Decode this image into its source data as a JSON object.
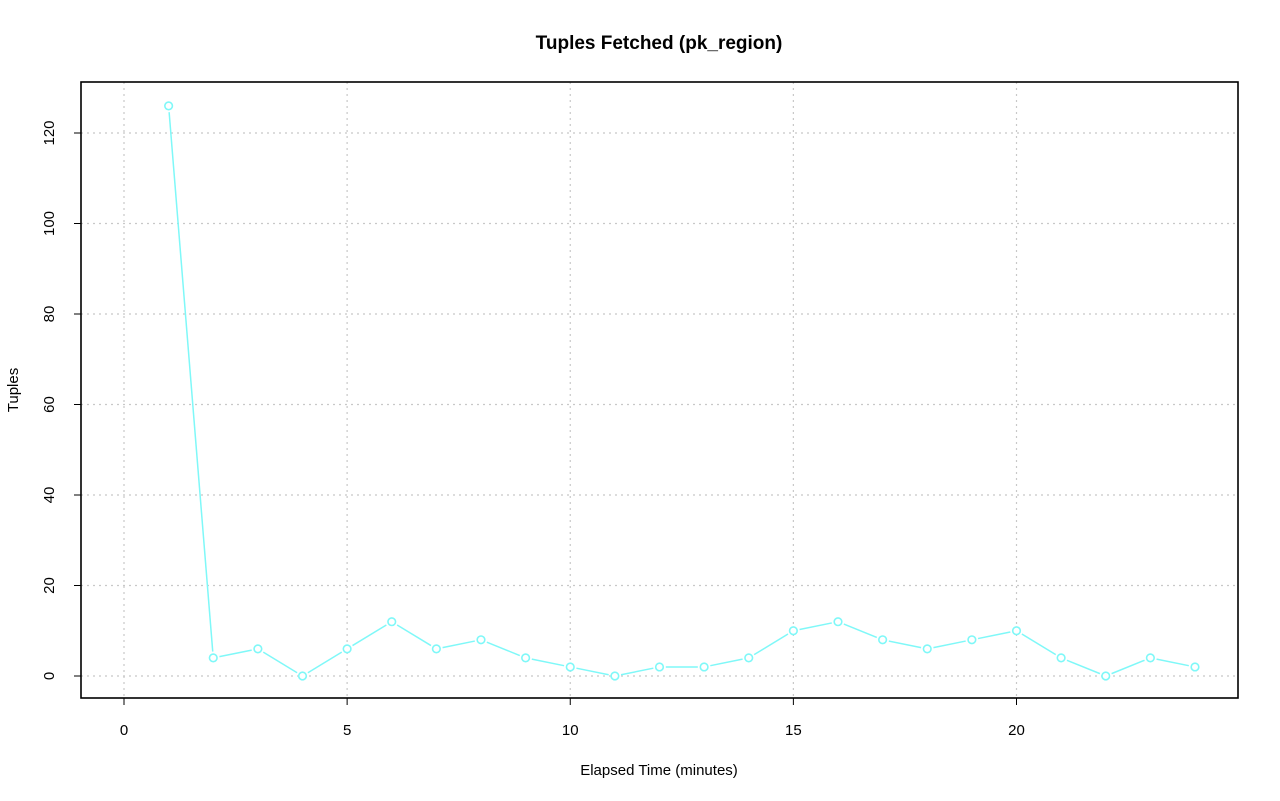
{
  "chart_data": {
    "type": "line",
    "title": "Tuples Fetched (pk_region)",
    "xlabel": "Elapsed Time (minutes)",
    "ylabel": "Tuples",
    "xlim": [
      0,
      24
    ],
    "ylim": [
      0,
      126
    ],
    "x_ticks": [
      0,
      5,
      10,
      15,
      20
    ],
    "y_ticks": [
      0,
      20,
      40,
      60,
      80,
      100,
      120
    ],
    "grid": true,
    "legend": "none",
    "series": [
      {
        "color": "#7ff8f8",
        "marker": "open-circle",
        "x": [
          1,
          2,
          3,
          4,
          5,
          6,
          7,
          8,
          9,
          10,
          11,
          12,
          13,
          14,
          15,
          16,
          17,
          18,
          19,
          20,
          21,
          22,
          23,
          24
        ],
        "values": [
          126,
          4,
          6,
          0,
          6,
          12,
          6,
          8,
          4,
          2,
          0,
          2,
          2,
          4,
          10,
          12,
          8,
          6,
          8,
          10,
          4,
          0,
          4,
          2
        ]
      }
    ]
  }
}
